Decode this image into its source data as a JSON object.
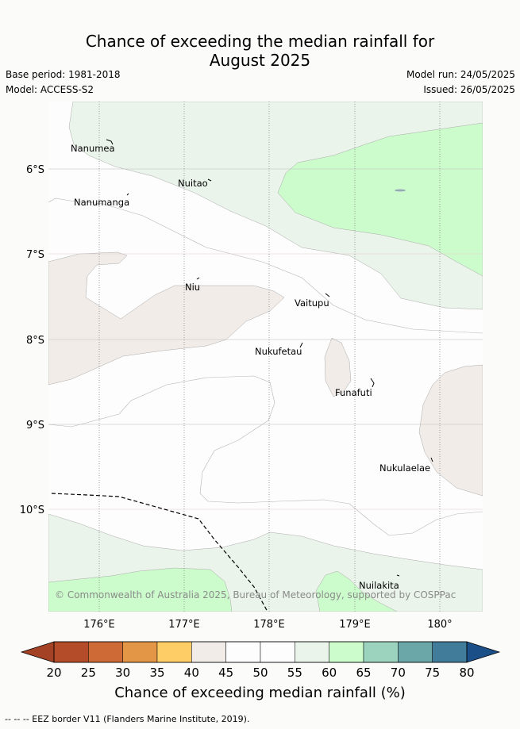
{
  "title_line1": "Chance of exceeding the median rainfall for",
  "title_line2": "August 2025",
  "base_period": "Base period: 1981-2018",
  "model": "Model: ACCESS-S2",
  "model_run": "Model run: 24/05/2025",
  "issued": "Issued: 26/05/2025",
  "map": {
    "lat_labels": [
      "6°S",
      "7°S",
      "8°S",
      "9°S",
      "10°S"
    ],
    "lon_labels": [
      "176°E",
      "177°E",
      "178°E",
      "179°E",
      "180°"
    ],
    "places": [
      "Nanumea",
      "Nuitao",
      "Nanumanga",
      "Niu",
      "Vaitupu",
      "Nukufetau",
      "Funafuti",
      "Nukulaelae",
      "Nuilakita"
    ],
    "copyright": "© Commonwealth of Australia 2025, Bureau of Meteorology, supported by COSPPac",
    "colors": {
      "bin_40_45": "#f1ece8",
      "bin_55_60": "#eaf4ea",
      "bin_60_65": "#ccfccc",
      "eez_line": "#000000"
    }
  },
  "colorbar": {
    "ticks": [
      "20",
      "25",
      "30",
      "35",
      "40",
      "45",
      "50",
      "55",
      "60",
      "65",
      "70",
      "75",
      "80"
    ],
    "colors": [
      "#a34224",
      "#b54c29",
      "#cd6a35",
      "#e29646",
      "#ffcd66",
      "#f1ece8",
      "#fdfdfd",
      "#fdfdfd",
      "#eaf4ea",
      "#ccfccc",
      "#9bd3bf",
      "#6ba6a8",
      "#417c9b",
      "#1b4f87"
    ],
    "title": "Chance of exceeding median rainfall (%)"
  },
  "footer": "--  --  -- EEZ border V11 (Flanders Marine Institute, 2019)."
}
